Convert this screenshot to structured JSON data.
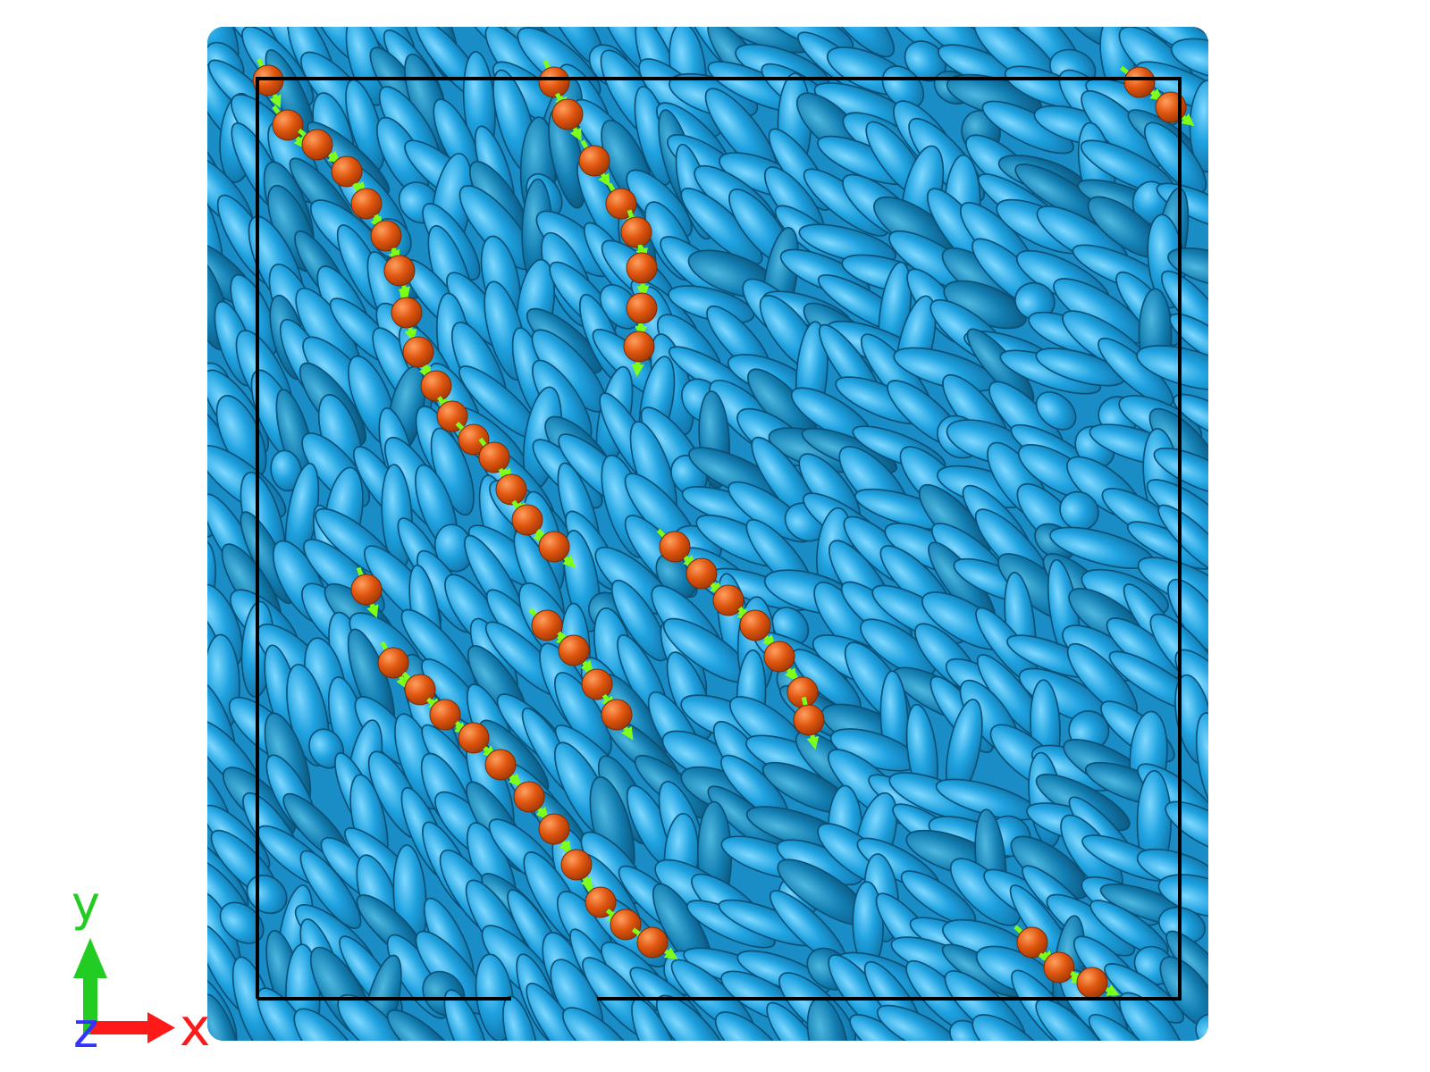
{
  "axes": {
    "x_label": "x",
    "y_label": "y",
    "z_label": "z",
    "x_color": "#ff1a1a",
    "y_color": "#22cc22",
    "z_color": "#3333ff"
  },
  "colors": {
    "background": "#ffffff",
    "ellipsoid_fill": "#1a9ad6",
    "ellipsoid_highlight": "#6cd0ff",
    "ellipsoid_edge": "#0a4f74",
    "sphere_fill": "#e05a10",
    "sphere_highlight": "#ff9a55",
    "director_arrow": "#7dff1a",
    "box_edge": "#000000"
  },
  "icons": {
    "x_axis_arrow": "right-arrow-icon",
    "y_axis_arrow": "up-arrow-icon",
    "particle": "ellipsoid-icon",
    "defect_bead": "sphere-icon"
  }
}
